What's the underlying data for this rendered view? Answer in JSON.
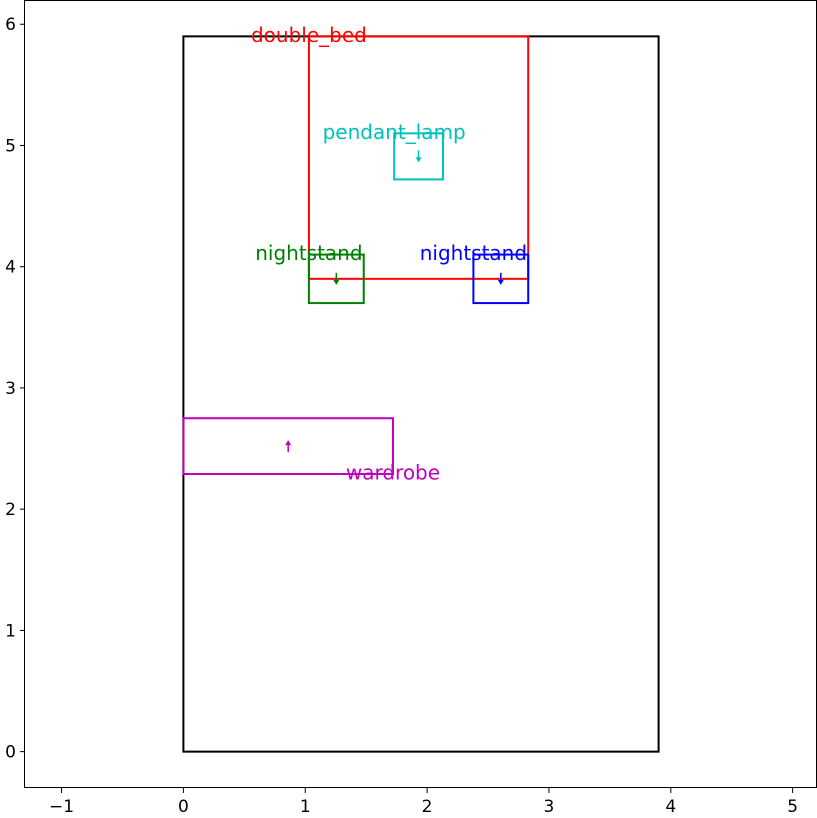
{
  "chart_data": {
    "type": "floor_plan",
    "title": "",
    "xlabel": "",
    "ylabel": "",
    "xlim": [
      -1.3,
      5.2
    ],
    "ylim": [
      -0.3,
      6.2
    ],
    "xticks": [
      -1,
      0,
      1,
      2,
      3,
      4,
      5
    ],
    "yticks": [
      0,
      1,
      2,
      3,
      4,
      5,
      6
    ],
    "xtick_labels": [
      "−1",
      "0",
      "1",
      "2",
      "3",
      "4",
      "5"
    ],
    "ytick_labels": [
      "0",
      "1",
      "2",
      "3",
      "4",
      "5",
      "6"
    ],
    "grid": false,
    "room": {
      "x0": 0,
      "y0": 0,
      "x1": 3.9,
      "y1": 5.9,
      "color": "#000000"
    },
    "objects": [
      {
        "label": "double_bed",
        "color": "#ff0000",
        "x0": 1.03,
        "y0": 3.9,
        "x1": 2.83,
        "y1": 5.9,
        "arrow": null
      },
      {
        "label": "pendant_lamp",
        "color": "#00bfbf",
        "x0": 1.73,
        "y0": 4.72,
        "x1": 2.13,
        "y1": 5.1,
        "arrow": "down"
      },
      {
        "label": "nightstand",
        "color": "#008000",
        "x0": 1.03,
        "y0": 3.7,
        "x1": 1.48,
        "y1": 4.1,
        "arrow": "down"
      },
      {
        "label": "nightstand",
        "color": "#0000ff",
        "x0": 2.38,
        "y0": 3.7,
        "x1": 2.83,
        "y1": 4.1,
        "arrow": "down"
      },
      {
        "label": "wardrobe",
        "color": "#bf00bf",
        "x0": 0.0,
        "y0": 2.29,
        "x1": 1.72,
        "y1": 2.75,
        "arrow": "up"
      }
    ]
  }
}
